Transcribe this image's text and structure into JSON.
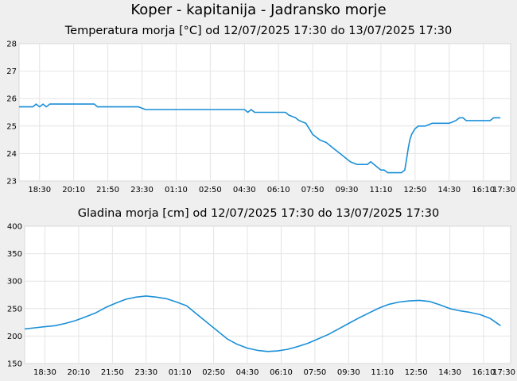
{
  "title": "Koper - kapitanija - Jadransko morje",
  "chart_data": [
    {
      "type": "line",
      "title": "Temperatura morja [°C] od 12/07/2025 17:30 do 13/07/2025 17:30",
      "xlabel": "",
      "ylabel": "",
      "ylim": [
        23,
        28
      ],
      "yticks": [
        23,
        24,
        25,
        26,
        27,
        28
      ],
      "xlim": [
        "17:30",
        "17:30"
      ],
      "xtick_labels": [
        "18:30",
        "20:10",
        "21:50",
        "23:30",
        "01:10",
        "02:50",
        "04:30",
        "06:10",
        "07:50",
        "09:30",
        "11:10",
        "12:50",
        "14:30",
        "16:10",
        "17:30"
      ],
      "xtick_hours": [
        1,
        2.667,
        4.333,
        6,
        7.667,
        9.333,
        11,
        12.667,
        14.333,
        16,
        17.667,
        19.333,
        21,
        22.667,
        24
      ],
      "grid": true,
      "color": "#1a8fd8",
      "series": [
        {
          "x_hours": [
            0,
            0.5,
            0.67,
            0.83,
            1.0,
            1.17,
            1.33,
            1.5,
            1.67,
            2.5,
            3.67,
            3.83,
            5.83,
            6.17,
            11.0,
            11.17,
            11.33,
            11.5,
            13.0,
            13.17,
            13.5,
            13.67,
            14.0,
            14.17,
            14.33,
            14.5,
            14.67,
            15.0,
            15.33,
            15.67,
            16.0,
            16.17,
            16.5,
            17.0,
            17.17,
            17.5,
            17.67,
            17.83,
            18.0,
            18.67,
            18.83,
            18.92,
            19.0,
            19.08,
            19.17,
            19.33,
            19.5,
            19.67,
            19.83,
            20.0,
            20.17,
            20.67,
            20.83,
            21.0,
            21.17,
            21.33,
            21.5,
            21.67,
            21.83,
            22.0,
            22.5,
            23.0,
            23.17,
            23.5
          ],
          "values": [
            25.7,
            25.7,
            25.7,
            25.8,
            25.7,
            25.8,
            25.7,
            25.8,
            25.8,
            25.8,
            25.8,
            25.7,
            25.7,
            25.6,
            25.6,
            25.5,
            25.6,
            25.5,
            25.5,
            25.4,
            25.3,
            25.2,
            25.1,
            24.9,
            24.7,
            24.6,
            24.5,
            24.4,
            24.2,
            24.0,
            23.8,
            23.7,
            23.6,
            23.6,
            23.7,
            23.5,
            23.4,
            23.4,
            23.3,
            23.3,
            23.4,
            23.8,
            24.2,
            24.5,
            24.7,
            24.9,
            25.0,
            25.0,
            25.0,
            25.05,
            25.1,
            25.1,
            25.1,
            25.1,
            25.15,
            25.2,
            25.3,
            25.3,
            25.2,
            25.2,
            25.2,
            25.2,
            25.3,
            25.3
          ]
        }
      ]
    },
    {
      "type": "line",
      "title": "Gladina morja [cm] od 12/07/2025 17:30 do 13/07/2025 17:30",
      "xlabel": "",
      "ylabel": "",
      "ylim": [
        150,
        400
      ],
      "yticks": [
        150,
        200,
        250,
        300,
        350,
        400
      ],
      "xlim": [
        "17:30",
        "17:30"
      ],
      "xtick_labels": [
        "18:30",
        "20:10",
        "21:50",
        "23:30",
        "01:10",
        "02:50",
        "04:30",
        "06:10",
        "07:50",
        "09:30",
        "11:10",
        "12:50",
        "14:30",
        "16:10",
        "17:30"
      ],
      "xtick_hours": [
        1,
        2.667,
        4.333,
        6,
        7.667,
        9.333,
        11,
        12.667,
        14.333,
        16,
        17.667,
        19.333,
        21,
        22.667,
        24
      ],
      "grid": true,
      "color": "#1a8fd8",
      "series": [
        {
          "x_hours": [
            0,
            0.5,
            1.0,
            1.5,
            2.0,
            2.5,
            3.0,
            3.5,
            4.0,
            4.5,
            5.0,
            5.5,
            6.0,
            6.5,
            7.0,
            7.5,
            8.0,
            8.5,
            9.0,
            9.5,
            10.0,
            10.5,
            11.0,
            11.5,
            12.0,
            12.5,
            13.0,
            13.5,
            14.0,
            14.5,
            15.0,
            15.5,
            16.0,
            16.5,
            17.0,
            17.5,
            18.0,
            18.5,
            19.0,
            19.5,
            20.0,
            20.5,
            21.0,
            21.5,
            22.0,
            22.5,
            23.0,
            23.5
          ],
          "values": [
            213,
            215,
            217,
            219,
            223,
            228,
            235,
            242,
            252,
            260,
            267,
            271,
            273,
            271,
            268,
            262,
            255,
            240,
            225,
            210,
            195,
            185,
            178,
            174,
            172,
            173,
            176,
            181,
            187,
            195,
            203,
            213,
            223,
            233,
            242,
            251,
            258,
            262,
            264,
            265,
            263,
            257,
            250,
            246,
            243,
            239,
            232,
            219
          ]
        }
      ]
    }
  ]
}
